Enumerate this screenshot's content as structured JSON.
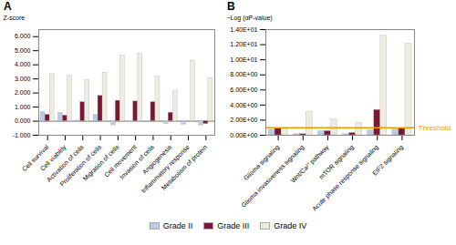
{
  "chart_data": [
    {
      "type": "bar",
      "title": "A",
      "categories": [
        "Cell survival",
        "Cell viability",
        "Activation of cells",
        "Proliferation of cells",
        "Migration of cells",
        "Cell movement",
        "Invasion of cells",
        "Angiogenesis",
        "Inflammatory response",
        "Metabolism of protein"
      ],
      "series": [
        {
          "name": "Grade II",
          "color": "#b8cce4",
          "values": [
            0.65,
            0.6,
            0.05,
            0.45,
            -0.3,
            -0.1,
            -0.05,
            -0.2,
            -0.25,
            -0.3
          ]
        },
        {
          "name": "Grade III",
          "color": "#7b1734",
          "values": [
            0.45,
            0.4,
            1.35,
            1.8,
            1.45,
            1.4,
            1.35,
            0.6,
            0.0,
            -0.2
          ]
        },
        {
          "name": "Grade IV",
          "color": "#eeece1",
          "values": [
            3.35,
            3.25,
            2.9,
            3.45,
            4.65,
            4.8,
            3.15,
            2.15,
            4.3,
            3.05
          ]
        }
      ],
      "ylabel": "Z-score",
      "ylim": [
        -1.0,
        6.5
      ],
      "yticks": [
        {
          "value": -1.0,
          "label": "-1.000"
        },
        {
          "value": 0.0,
          "label": "0.000"
        },
        {
          "value": 1.0,
          "label": "1.000"
        },
        {
          "value": 2.0,
          "label": "2.000"
        },
        {
          "value": 3.0,
          "label": "3.000"
        },
        {
          "value": 4.0,
          "label": "4.000"
        },
        {
          "value": 5.0,
          "label": "5.000"
        },
        {
          "value": 6.0,
          "label": "6.000"
        }
      ],
      "legend": "bottom"
    },
    {
      "type": "bar",
      "title": "B",
      "categories": [
        "Glioma signaling",
        "Glioma invasiveness signaling",
        "Wnt/Ca²⁺ pathway",
        "mTOR signaling",
        "Acute phase response signaling",
        "EIF2 signaling"
      ],
      "series": [
        {
          "name": "Grade II",
          "color": "#b8cce4",
          "values": [
            0.7,
            0.15,
            0.55,
            0.15,
            0.65,
            0.8
          ]
        },
        {
          "name": "Grade III",
          "color": "#7b1734",
          "values": [
            0.9,
            0.15,
            0.55,
            0.3,
            3.35,
            0.85
          ]
        },
        {
          "name": "Grade IV",
          "color": "#eeece1",
          "values": [
            0.9,
            3.1,
            2.1,
            1.65,
            13.2,
            12.15
          ]
        }
      ],
      "ylabel": "−Log (αP-value)",
      "ylim": [
        0.0,
        14.0
      ],
      "yticks": [
        {
          "value": 0.0,
          "label": "0.00E+00"
        },
        {
          "value": 2.0,
          "label": "2.00E+00"
        },
        {
          "value": 4.0,
          "label": "4.00E+00"
        },
        {
          "value": 6.0,
          "label": "6.00E+00"
        },
        {
          "value": 8.0,
          "label": "8.00E+00"
        },
        {
          "value": 10.0,
          "label": "1.00E+01"
        },
        {
          "value": 12.0,
          "label": "1.20E+01"
        },
        {
          "value": 14.0,
          "label": "1.40E+01"
        }
      ],
      "annotations": [
        {
          "y": 1.0,
          "text": "Threshold",
          "color": "#E8A000"
        }
      ],
      "legend": "bottom"
    }
  ]
}
